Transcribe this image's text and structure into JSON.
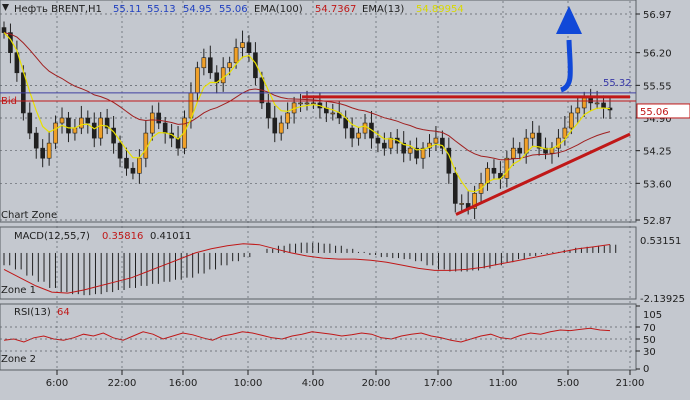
{
  "chart_data": {
    "type": "candlestick",
    "header": {
      "symbol": "Нефть BRENT,H1",
      "ohlc": [
        "55.11",
        "55.13",
        "54.95",
        "55.06"
      ],
      "ema100_label": "EMA(100)",
      "ema100_value": "54.7367",
      "ema13_label": "EMA(13)",
      "ema13_value": "54.89954"
    },
    "main_panel": {
      "zone_label": "Chart Zone",
      "bid_label": "Bid",
      "ylim": [
        52.87,
        56.97
      ],
      "y_ticks": [
        "56.97",
        "56.20",
        "55.55",
        "54.90",
        "54.25",
        "53.60",
        "52.87"
      ],
      "bid_price": "55.06",
      "resistance_price": "55.32"
    },
    "macd_panel": {
      "label": "MACD(12,55,7)",
      "value1": "0.35816",
      "value2": "0.41011",
      "zone_label": "Zone 1",
      "ylim": [
        -2.13925,
        0.53151
      ],
      "y_ticks": [
        "0.53151",
        "-2.13925"
      ]
    },
    "rsi_panel": {
      "label": "RSI(13)",
      "value": "64",
      "zone_label": "Zone 2",
      "ylim": [
        0,
        105
      ],
      "y_ticks": [
        "105",
        "70",
        "50",
        "30",
        "0"
      ]
    },
    "x_ticks": [
      "6:00",
      "22:00",
      "16:00",
      "10:00",
      "4:00",
      "20:00",
      "17:00",
      "11:00",
      "5:00",
      "21:00"
    ],
    "close_series": [
      56.6,
      56.2,
      55.8,
      55.0,
      54.6,
      54.3,
      54.1,
      54.4,
      54.8,
      54.9,
      54.6,
      54.7,
      54.9,
      54.8,
      54.5,
      54.9,
      54.7,
      54.4,
      54.1,
      53.9,
      53.8,
      54.1,
      54.6,
      55.0,
      54.8,
      54.6,
      54.5,
      54.3,
      54.9,
      55.4,
      55.9,
      56.1,
      55.8,
      55.6,
      55.9,
      56.0,
      56.3,
      56.4,
      56.2,
      55.7,
      55.2,
      54.9,
      54.6,
      54.8,
      55.0,
      55.2,
      55.2,
      55.2,
      55.2,
      55.1,
      55.0,
      55.0,
      54.9,
      54.7,
      54.5,
      54.6,
      54.8,
      54.5,
      54.4,
      54.3,
      54.5,
      54.4,
      54.2,
      54.3,
      54.1,
      54.3,
      54.4,
      54.5,
      54.3,
      53.8,
      53.2,
      53.2,
      53.1,
      53.4,
      53.6,
      53.9,
      53.8,
      53.7,
      54.1,
      54.3,
      54.2,
      54.5,
      54.6,
      54.3,
      54.2,
      54.3,
      54.5,
      54.7,
      55.0,
      55.1,
      55.3,
      55.2,
      55.2,
      55.1,
      55.06
    ],
    "macd_series": [
      -0.6,
      -0.8,
      -1.1,
      -1.4,
      -1.7,
      -1.9,
      -2.0,
      -2.05,
      -2.0,
      -1.9,
      -1.8,
      -1.7,
      -1.6,
      -1.5,
      -1.4,
      -1.3,
      -1.2,
      -1.0,
      -0.8,
      -0.6,
      -0.4,
      -0.2,
      0.0,
      0.2,
      0.35,
      0.45,
      0.5,
      0.5,
      0.45,
      0.35,
      0.2,
      0.05,
      -0.1,
      -0.2,
      -0.25,
      -0.3,
      -0.4,
      -0.6,
      -0.8,
      -0.9,
      -0.9,
      -0.85,
      -0.75,
      -0.6,
      -0.45,
      -0.3,
      -0.15,
      -0.05,
      0.05,
      0.15,
      0.25,
      0.3,
      0.35,
      0.4
    ],
    "macd_signal": [
      -0.8,
      -1.2,
      -1.6,
      -1.9,
      -1.95,
      -1.8,
      -1.6,
      -1.4,
      -1.2,
      -0.9,
      -0.6,
      -0.3,
      0.0,
      0.2,
      0.35,
      0.45,
      0.4,
      0.2,
      0.0,
      -0.15,
      -0.25,
      -0.3,
      -0.3,
      -0.35,
      -0.45,
      -0.6,
      -0.75,
      -0.85,
      -0.85,
      -0.8,
      -0.7,
      -0.55,
      -0.4,
      -0.25,
      -0.1,
      0.05,
      0.2,
      0.3,
      0.41
    ],
    "rsi_series": [
      48,
      50,
      45,
      52,
      55,
      50,
      48,
      52,
      58,
      55,
      60,
      52,
      48,
      55,
      62,
      58,
      50,
      55,
      60,
      57,
      52,
      48,
      55,
      58,
      62,
      60,
      56,
      52,
      50,
      55,
      58,
      62,
      60,
      58,
      55,
      57,
      60,
      58,
      52,
      50,
      55,
      58,
      60,
      55,
      52,
      48,
      45,
      50,
      55,
      58,
      52,
      50,
      56,
      60,
      58,
      62,
      65,
      64,
      66,
      68,
      65,
      64
    ]
  }
}
